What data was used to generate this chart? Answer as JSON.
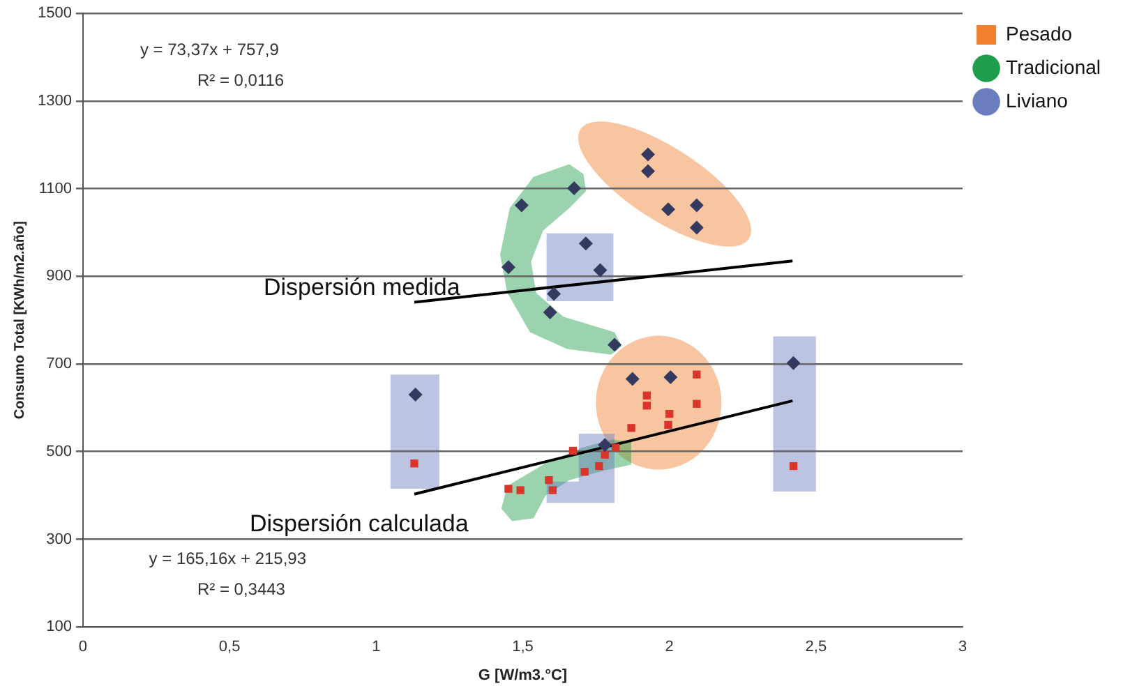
{
  "chart_data": {
    "type": "scatter",
    "xlabel": "G [W/m3.°C]",
    "ylabel": "Consumo Total [KWh/m2.año]",
    "xlim": [
      0,
      3
    ],
    "xticks": [
      0,
      {
        "value": 0.5,
        "label": "0,5"
      },
      1,
      {
        "value": 1.5,
        "label": "1,5"
      },
      2,
      {
        "value": 2.5,
        "label": "2,5"
      },
      3
    ],
    "ylim": [
      100,
      1500
    ],
    "yticks": [
      100,
      300,
      500,
      700,
      900,
      1100,
      1300,
      1500
    ],
    "grid": "y",
    "legend": "top right",
    "annotations": [
      "y = 73,37x + 757,9",
      "R² = 0,0116",
      "y = 165,16x + 215,93",
      "R² = 0,3443"
    ],
    "series": [
      {
        "marker": "diamond",
        "color": "#34395f",
        "x": [
          1.134,
          1.496,
          1.675,
          1.451,
          1.593,
          1.715,
          1.764,
          1.606,
          1.813,
          1.927,
          1.927,
          1.996,
          2.093,
          2.093,
          1.874,
          2.004,
          1.78,
          2.423
        ],
        "values": [
          630,
          1062,
          1101,
          921,
          818,
          975,
          914,
          860,
          744,
          1178,
          1140,
          1053,
          1062,
          1011,
          666,
          670,
          515,
          702
        ]
      },
      {
        "marker": "square",
        "color": "#d9352a",
        "x": [
          1.13,
          1.451,
          1.492,
          1.589,
          1.602,
          1.671,
          1.711,
          1.76,
          1.78,
          1.817,
          1.87,
          1.923,
          1.923,
          2.0,
          1.996,
          2.093,
          2.093,
          2.423
        ],
        "values": [
          473,
          415,
          412,
          435,
          412,
          502,
          454,
          467,
          493,
          509,
          554,
          628,
          605,
          586,
          561,
          676,
          609,
          467
        ]
      },
      {
        "type": "line",
        "name": "Dispersión medida",
        "marker": "none",
        "color": "#000000",
        "x": [
          1.13,
          2.42
        ],
        "values": [
          841,
          935
        ]
      },
      {
        "type": "line",
        "name": "Dispersión calculada",
        "marker": "none",
        "color": "#000000",
        "x": [
          1.13,
          2.42
        ],
        "values": [
          403,
          616
        ]
      },
      {
        "name": "Pesado",
        "marker": "square",
        "color": "#f07f2e"
      },
      {
        "name": "Tradicional",
        "marker": "circle",
        "color": "#1e9e4a"
      },
      {
        "name": "Liviano",
        "marker": "circle",
        "color": "#6a7dbf"
      }
    ]
  }
}
